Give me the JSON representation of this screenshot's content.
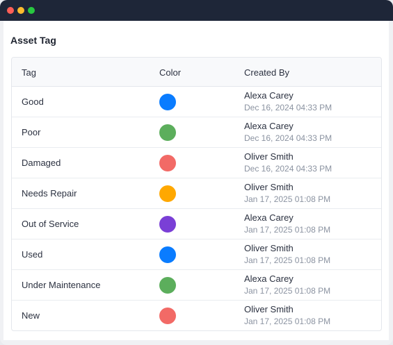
{
  "panel": {
    "title": "Asset Tag"
  },
  "table": {
    "headers": {
      "tag": "Tag",
      "color": "Color",
      "created_by": "Created By"
    },
    "rows": [
      {
        "tag": "Good",
        "color": "#0a7cff",
        "creator": "Alexa Carey",
        "date": "Dec 16, 2024 04:33 PM"
      },
      {
        "tag": "Poor",
        "color": "#5cae5c",
        "creator": "Alexa Carey",
        "date": "Dec 16, 2024 04:33 PM"
      },
      {
        "tag": "Damaged",
        "color": "#f26a66",
        "creator": "Oliver Smith",
        "date": "Dec 16, 2024 04:33 PM"
      },
      {
        "tag": "Needs Repair",
        "color": "#ffa800",
        "creator": "Oliver Smith",
        "date": "Jan 17, 2025 01:08 PM"
      },
      {
        "tag": "Out of Service",
        "color": "#7a3fd6",
        "creator": "Alexa Carey",
        "date": "Jan 17, 2025 01:08 PM"
      },
      {
        "tag": "Used",
        "color": "#0a7cff",
        "creator": "Oliver Smith",
        "date": "Jan 17, 2025 01:08 PM"
      },
      {
        "tag": "Under Maintenance",
        "color": "#5cae5c",
        "creator": "Alexa Carey",
        "date": "Jan 17, 2025 01:08 PM"
      },
      {
        "tag": "New",
        "color": "#f26a66",
        "creator": "Oliver Smith",
        "date": "Jan 17, 2025 01:08 PM"
      }
    ]
  }
}
